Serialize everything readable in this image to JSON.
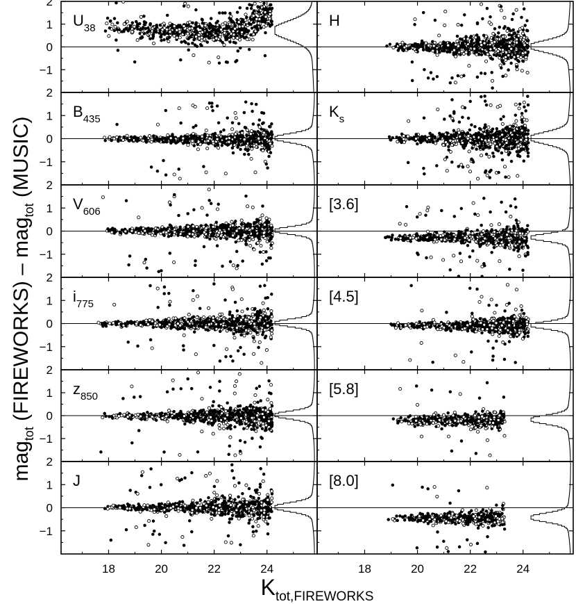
{
  "chart_data": {
    "type": "scatter",
    "layout": "6x2 panel grid with marginal histograms on the right side of each panel",
    "xlabel_main": "K",
    "xlabel_sub": "tot,FIREWORKS",
    "ylabel_parts": [
      "mag",
      "tot",
      " (FIREWORKS) – mag",
      "tot",
      " (MUSIC)"
    ],
    "xlim": [
      16.2,
      25.9
    ],
    "ylim": [
      -2,
      2
    ],
    "x_ticks": [
      18,
      20,
      22,
      24
    ],
    "y_ticks": [
      -1,
      0,
      1,
      2
    ],
    "reference_line_y": 0,
    "panels": [
      {
        "id": "U38",
        "label": "U",
        "label_sub": "38",
        "column": 0,
        "row": 0,
        "trend": [
          [
            17.6,
            1.0
          ],
          [
            20,
            0.7
          ],
          [
            22,
            0.6
          ],
          [
            23,
            0.8
          ],
          [
            24,
            1.4
          ]
        ],
        "scatter_sigma": [
          0.22,
          0.35
        ],
        "outlier_rate": 0.05,
        "density": 700,
        "x_range": [
          17.5,
          24.2
        ],
        "hist_center": 0.7,
        "hist_width": 0.4
      },
      {
        "id": "B435",
        "label": "B",
        "label_sub": "435",
        "column": 0,
        "row": 1,
        "trend": [
          [
            17.6,
            0
          ],
          [
            24,
            -0.05
          ]
        ],
        "scatter_sigma": [
          0.05,
          0.3
        ],
        "outlier_rate": 0.08,
        "density": 650,
        "x_range": [
          17.5,
          24.2
        ],
        "hist_center": 0.0,
        "hist_width": 0.18
      },
      {
        "id": "V606",
        "label": "V",
        "label_sub": "606",
        "column": 0,
        "row": 2,
        "trend": [
          [
            17.6,
            0
          ],
          [
            24,
            0
          ]
        ],
        "scatter_sigma": [
          0.05,
          0.3
        ],
        "outlier_rate": 0.08,
        "density": 700,
        "x_range": [
          17.5,
          24.2
        ],
        "hist_center": 0.0,
        "hist_width": 0.15
      },
      {
        "id": "i775",
        "label": "i",
        "label_sub": "775",
        "column": 0,
        "row": 3,
        "trend": [
          [
            17.6,
            0
          ],
          [
            24,
            0
          ]
        ],
        "scatter_sigma": [
          0.05,
          0.32
        ],
        "outlier_rate": 0.08,
        "density": 700,
        "x_range": [
          17.5,
          24.2
        ],
        "hist_center": 0.0,
        "hist_width": 0.15
      },
      {
        "id": "z850",
        "label": "z",
        "label_sub": "850",
        "column": 0,
        "row": 4,
        "trend": [
          [
            17.6,
            0
          ],
          [
            24,
            -0.05
          ]
        ],
        "scatter_sigma": [
          0.05,
          0.32
        ],
        "outlier_rate": 0.08,
        "density": 700,
        "x_range": [
          17.5,
          24.2
        ],
        "hist_center": 0.0,
        "hist_width": 0.16
      },
      {
        "id": "J",
        "label": "J",
        "label_sub": "",
        "column": 0,
        "row": 5,
        "trend": [
          [
            17.6,
            0
          ],
          [
            24,
            0
          ]
        ],
        "scatter_sigma": [
          0.05,
          0.33
        ],
        "outlier_rate": 0.09,
        "density": 700,
        "x_range": [
          17.5,
          24.2
        ],
        "hist_center": 0.0,
        "hist_width": 0.18
      },
      {
        "id": "H",
        "label": "H",
        "label_sub": "",
        "column": 1,
        "row": 0,
        "trend": [
          [
            17.6,
            0
          ],
          [
            24,
            0
          ]
        ],
        "scatter_sigma": [
          0.08,
          0.38
        ],
        "outlier_rate": 0.1,
        "density": 750,
        "x_range": [
          18.8,
          24.2
        ],
        "hist_center": 0.0,
        "hist_width": 0.25
      },
      {
        "id": "Ks",
        "label": "K",
        "label_sub": "s",
        "column": 1,
        "row": 1,
        "trend": [
          [
            17.6,
            0
          ],
          [
            24,
            0
          ]
        ],
        "scatter_sigma": [
          0.08,
          0.38
        ],
        "outlier_rate": 0.1,
        "density": 750,
        "x_range": [
          18.8,
          24.2
        ],
        "hist_center": 0.0,
        "hist_width": 0.25
      },
      {
        "id": "3.6",
        "label": "[3.6]",
        "label_sub": "",
        "column": 1,
        "row": 2,
        "trend": [
          [
            17.6,
            -0.3
          ],
          [
            24,
            -0.3
          ]
        ],
        "scatter_sigma": [
          0.06,
          0.28
        ],
        "outlier_rate": 0.07,
        "density": 650,
        "x_range": [
          18.6,
          24.2
        ],
        "hist_center": -0.3,
        "hist_width": 0.15
      },
      {
        "id": "4.5",
        "label": "[4.5]",
        "label_sub": "",
        "column": 1,
        "row": 3,
        "trend": [
          [
            17.6,
            -0.1
          ],
          [
            24,
            -0.1
          ]
        ],
        "scatter_sigma": [
          0.05,
          0.25
        ],
        "outlier_rate": 0.07,
        "density": 650,
        "x_range": [
          18.8,
          24.2
        ],
        "hist_center": -0.1,
        "hist_width": 0.15
      },
      {
        "id": "5.8",
        "label": "[5.8]",
        "label_sub": "",
        "column": 1,
        "row": 4,
        "trend": [
          [
            17.6,
            -0.2
          ],
          [
            24,
            -0.2
          ]
        ],
        "scatter_sigma": [
          0.08,
          0.22
        ],
        "outlier_rate": 0.05,
        "density": 450,
        "x_range": [
          18.8,
          23.3
        ],
        "hist_center": -0.2,
        "hist_width": 0.18
      },
      {
        "id": "8.0",
        "label": "[8.0]",
        "label_sub": "",
        "column": 1,
        "row": 5,
        "trend": [
          [
            17.6,
            -0.45
          ],
          [
            24,
            -0.45
          ]
        ],
        "scatter_sigma": [
          0.08,
          0.2
        ],
        "outlier_rate": 0.05,
        "density": 450,
        "x_range": [
          18.8,
          23.3
        ],
        "hist_center": -0.45,
        "hist_width": 0.18
      }
    ]
  }
}
